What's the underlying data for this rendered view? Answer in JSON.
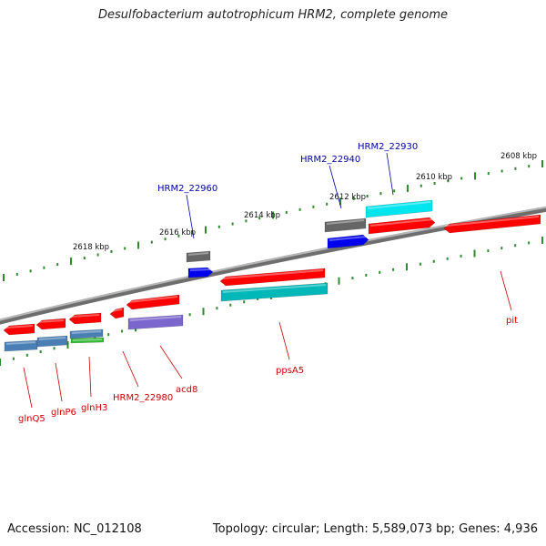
{
  "title": "Desulfobacterium autotrophicum HRM2, complete genome",
  "footer": {
    "accession": "Accession: NC_012108",
    "summary": "Topology: circular; Length: 5,589,073 bp; Genes: 4,936"
  },
  "colors": {
    "backbone": "#8a8a8a",
    "tick": "#2e8b2e",
    "ruler_text": "#111111",
    "label_red": "#cc0000",
    "label_blue": "#0000aa"
  },
  "ruler_labels": [
    "2618 kbp",
    "2616 kbp",
    "2614 kbp",
    "2612 kbp",
    "2610 kbp",
    "2608 kbp"
  ],
  "gene_labels": [
    {
      "text": "HRM2_22960",
      "color": "blue"
    },
    {
      "text": "HRM2_22940",
      "color": "blue"
    },
    {
      "text": "HRM2_22930",
      "color": "blue"
    },
    {
      "text": "glnQ5",
      "color": "red"
    },
    {
      "text": "glnP6",
      "color": "red"
    },
    {
      "text": "glnH3",
      "color": "red"
    },
    {
      "text": "HRM2_22980",
      "color": "red"
    },
    {
      "text": "acd8",
      "color": "red"
    },
    {
      "text": "ppsA5",
      "color": "red"
    },
    {
      "text": "pit",
      "color": "red"
    }
  ],
  "features": [
    {
      "name": "feature-red-1",
      "color": "#ff0000"
    },
    {
      "name": "feature-red-2",
      "color": "#ff0000"
    },
    {
      "name": "feature-red-3",
      "color": "#ff0000"
    },
    {
      "name": "feature-red-4",
      "color": "#ff0000"
    },
    {
      "name": "feature-red-5",
      "color": "#ff0000"
    },
    {
      "name": "feature-red-6",
      "color": "#ff0000"
    },
    {
      "name": "feature-red-7",
      "color": "#ff0000"
    },
    {
      "name": "feature-steelblue-1",
      "color": "#4a7fb5"
    },
    {
      "name": "feature-steelblue-2",
      "color": "#4a7fb5"
    },
    {
      "name": "feature-steelblue-3",
      "color": "#4a7fb5"
    },
    {
      "name": "feature-green-1",
      "color": "#33bb33"
    },
    {
      "name": "feature-purple-1",
      "color": "#7a66cc"
    },
    {
      "name": "feature-cyan-1",
      "color": "#00b8b8"
    },
    {
      "name": "feature-cyan-2",
      "color": "#00e5ee"
    },
    {
      "name": "feature-gray-1",
      "color": "#666666"
    },
    {
      "name": "feature-gray-2",
      "color": "#666666"
    },
    {
      "name": "feature-blue-1",
      "color": "#0000ee"
    },
    {
      "name": "feature-blue-2",
      "color": "#0000ee"
    },
    {
      "name": "feature-red-8",
      "color": "#ff0000"
    }
  ]
}
